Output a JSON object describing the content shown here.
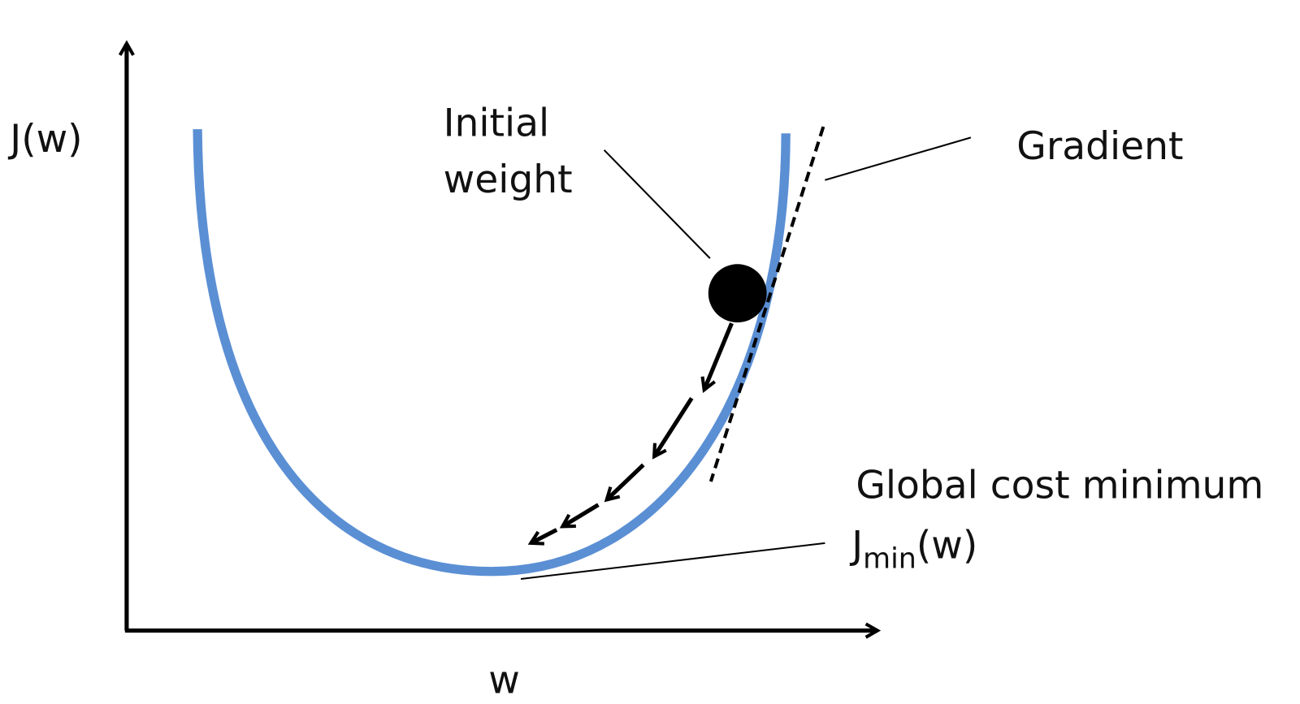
{
  "axes": {
    "y_label": "J(w)",
    "x_label": "w"
  },
  "annotations": {
    "initial_weight": [
      "Initial",
      "weight"
    ],
    "gradient": "Gradient",
    "global_minimum": "Global cost minimum",
    "minimum_symbol": {
      "base": "J",
      "subscript": "min",
      "suffix": "(w)"
    }
  }
}
